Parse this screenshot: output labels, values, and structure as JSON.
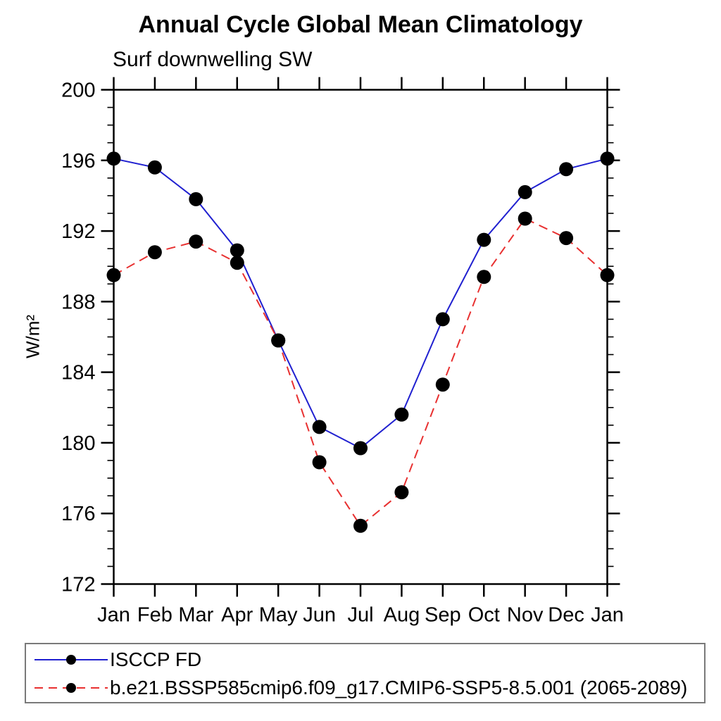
{
  "title": "Annual Cycle Global Mean Climatology",
  "subtitle": "Surf downwelling SW",
  "ylabel": "W/m²",
  "colors": {
    "series1": "#2020d0",
    "series2": "#e83030",
    "marker": "#000000",
    "axis": "#000000",
    "legend_border": "#7a7a7a",
    "background": "#ffffff"
  },
  "chart_data": {
    "type": "line",
    "categories": [
      "Jan",
      "Feb",
      "Mar",
      "Apr",
      "May",
      "Jun",
      "Jul",
      "Aug",
      "Sep",
      "Oct",
      "Nov",
      "Dec",
      "Jan"
    ],
    "series": [
      {
        "name": "ISCCP FD",
        "color": "#2020d0",
        "style": "solid",
        "marker": "circle",
        "marker_color": "#000000",
        "values": [
          196.1,
          195.6,
          193.8,
          190.9,
          185.8,
          180.9,
          179.7,
          181.6,
          187.0,
          191.5,
          194.2,
          195.5,
          196.1
        ]
      },
      {
        "name": "b.e21.BSSP585cmip6.f09_g17.CMIP6-SSP5-8.5.001 (2065-2089)",
        "color": "#e83030",
        "style": "dashed",
        "marker": "circle",
        "marker_color": "#000000",
        "values": [
          189.5,
          190.8,
          191.4,
          190.2,
          185.8,
          178.9,
          175.3,
          177.2,
          183.3,
          189.4,
          192.7,
          191.6,
          189.5
        ]
      }
    ],
    "title": "Annual Cycle Global Mean Climatology",
    "subtitle": "Surf downwelling SW",
    "xlabel": "",
    "ylabel": "W/m²",
    "ylim": [
      172,
      200
    ],
    "ytick_major": 4,
    "ytick_minor": 1,
    "grid": "off",
    "legend_position": "bottom"
  }
}
